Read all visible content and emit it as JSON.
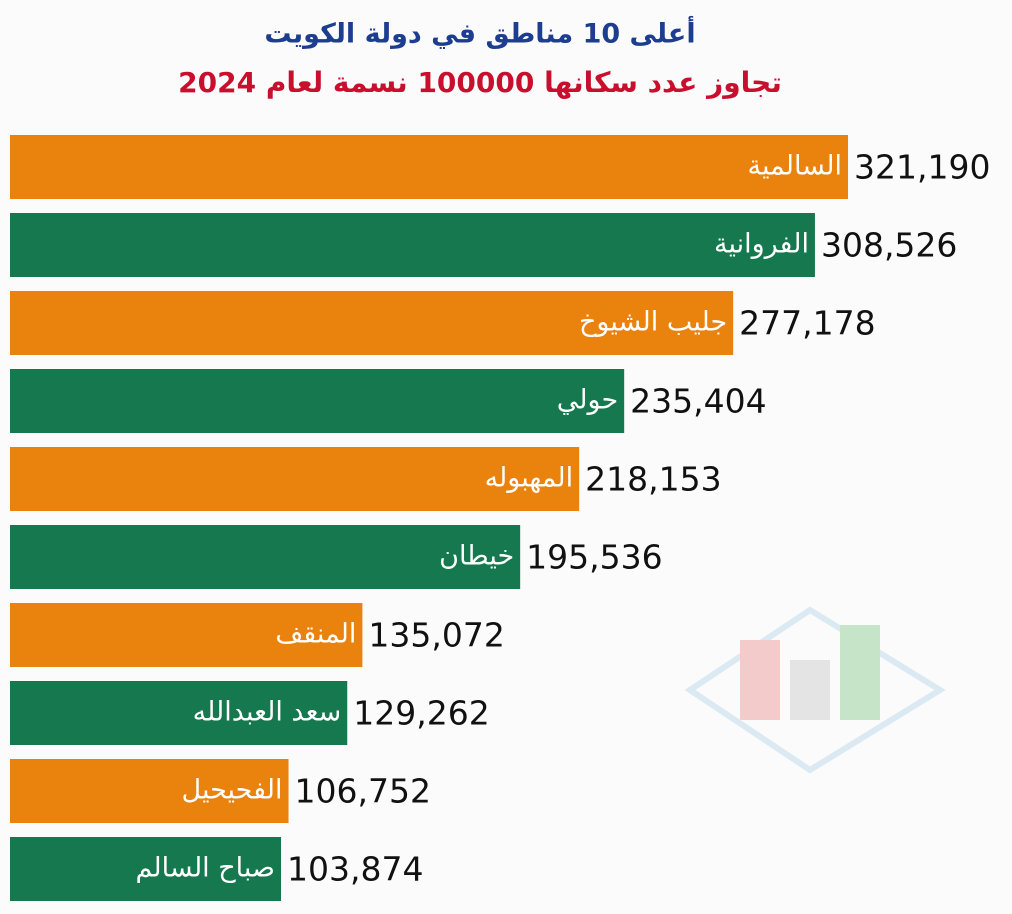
{
  "chart_data": {
    "type": "bar",
    "orientation": "horizontal",
    "title": "أعلى 10 مناطق في دولة الكويت",
    "subtitle": "تجاوز عدد سكانها 100000 نسمة لعام 2024",
    "categories": [
      "السالمية",
      "الفروانية",
      "جليب الشيوخ",
      "حولي",
      "المهبوله",
      "خيطان",
      "المنقف",
      "سعد العبدالله",
      "الفحيحيل",
      "صباح السالم"
    ],
    "values": [
      321190,
      308526,
      277178,
      235404,
      218153,
      195536,
      135072,
      129262,
      106752,
      103874
    ],
    "value_labels": [
      "321,190",
      "308,526",
      "277,178",
      "235,404",
      "218,153",
      "195,536",
      "135,072",
      "129,262",
      "106,752",
      "103,874"
    ],
    "colors": [
      "#ea820e",
      "#16784e",
      "#ea820e",
      "#16784e",
      "#ea820e",
      "#16784e",
      "#ea820e",
      "#16784e",
      "#ea820e",
      "#16784e"
    ]
  }
}
